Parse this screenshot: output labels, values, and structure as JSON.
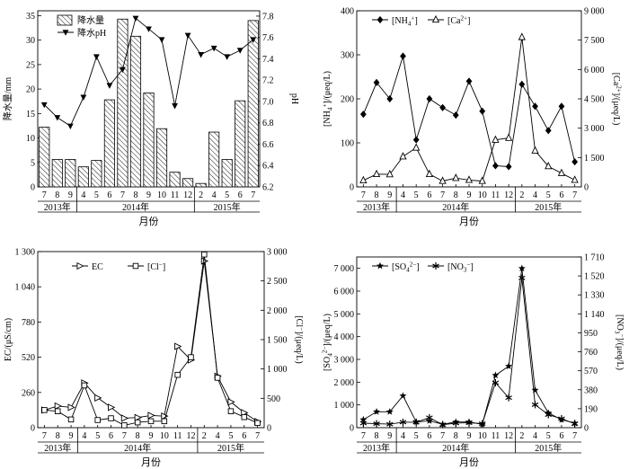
{
  "chart_data": [
    {
      "type": "bar+line",
      "xlabel": "月份",
      "categories": [
        "7",
        "8",
        "9",
        "4",
        "5",
        "6",
        "7",
        "8",
        "9",
        "10",
        "11",
        "12",
        "2",
        "4",
        "5",
        "6",
        "7"
      ],
      "year_groups": [
        {
          "label": "2013年",
          "from": 0,
          "to": 2
        },
        {
          "label": "2014年",
          "from": 3,
          "to": 11
        },
        {
          "label": "2015年",
          "from": 12,
          "to": 16
        }
      ],
      "ylabel_left": "降水量/mm",
      "ylabel_right": "pH",
      "ylim_left": [
        0,
        36
      ],
      "yticks_left": [
        "0",
        "5",
        "10",
        "15",
        "20",
        "25",
        "30",
        "35"
      ],
      "ylim_right": [
        6.2,
        7.85
      ],
      "yticks_right": [
        "6.2",
        "6.4",
        "6.6",
        "6.8",
        "7.0",
        "7.2",
        "7.4",
        "7.6",
        "7.8"
      ],
      "legend_position": "top-left",
      "series": [
        {
          "name": "降水量",
          "kind": "bar",
          "axis": "left",
          "values": [
            12.2,
            5.6,
            5.6,
            4.1,
            5.4,
            17.8,
            34.3,
            30.8,
            19.2,
            11.9,
            3.0,
            1.7,
            0.7,
            11.2,
            5.6,
            17.6,
            34.0
          ]
        },
        {
          "name": "降水pH",
          "kind": "line",
          "marker": "triangle-down",
          "axis": "right",
          "values": [
            6.97,
            6.85,
            6.77,
            7.04,
            7.42,
            7.15,
            7.3,
            7.78,
            7.68,
            7.58,
            6.96,
            7.62,
            7.44,
            7.5,
            7.42,
            7.48,
            7.58
          ]
        }
      ]
    },
    {
      "type": "line",
      "xlabel": "月份",
      "categories": [
        "7",
        "8",
        "9",
        "4",
        "5",
        "6",
        "7",
        "8",
        "9",
        "10",
        "11",
        "12",
        "2",
        "4",
        "5",
        "6",
        "7"
      ],
      "year_groups": [
        {
          "label": "2013年",
          "from": 0,
          "to": 2
        },
        {
          "label": "2014年",
          "from": 3,
          "to": 11
        },
        {
          "label": "2015年",
          "from": 12,
          "to": 16
        }
      ],
      "ylabel_left": "[NH4+]/(μeq/L)",
      "ylabel_right": "[Ca2+]/(μeq/L)",
      "ylim_left": [
        0,
        400
      ],
      "yticks_left": [
        "0",
        "100",
        "200",
        "300",
        "400"
      ],
      "ylim_right": [
        0,
        9000
      ],
      "yticks_right": [
        "0",
        "1 500",
        "3 000",
        "4 500",
        "6 000",
        "7 500",
        "9 000"
      ],
      "legend_position": "top-left",
      "series": [
        {
          "name": "[NH4+]",
          "marker": "diamond-filled",
          "axis": "left",
          "values": [
            165,
            237,
            200,
            297,
            107,
            200,
            180,
            163,
            240,
            172,
            48,
            46,
            233,
            183,
            128,
            183,
            57
          ]
        },
        {
          "name": "[Ca2+]",
          "marker": "triangle-open",
          "axis": "right",
          "values": [
            330,
            650,
            640,
            1550,
            2000,
            650,
            300,
            450,
            350,
            300,
            2400,
            2500,
            7650,
            1850,
            1050,
            700,
            350
          ]
        }
      ]
    },
    {
      "type": "line",
      "xlabel": "月份",
      "categories": [
        "7",
        "8",
        "9",
        "4",
        "5",
        "6",
        "7",
        "8",
        "9",
        "10",
        "11",
        "12",
        "2",
        "4",
        "5",
        "6",
        "7"
      ],
      "year_groups": [
        {
          "label": "2013年",
          "from": 0,
          "to": 2
        },
        {
          "label": "2014年",
          "from": 3,
          "to": 11
        },
        {
          "label": "2015年",
          "from": 12,
          "to": 16
        }
      ],
      "ylabel_left": "EC/(μS/cm)",
      "ylabel_right": "[Cl−]/(μeq/L)",
      "ylim_left": [
        0,
        1300
      ],
      "yticks_left": [
        "0",
        "260",
        "520",
        "780",
        "1 040",
        "1 300"
      ],
      "ylim_right": [
        0,
        3000
      ],
      "yticks_right": [
        "0",
        "500",
        "1 000",
        "1 500",
        "2 000",
        "2 500",
        "3 000"
      ],
      "legend_position": "top-left",
      "series": [
        {
          "name": "EC",
          "marker": "triangle-right-open",
          "axis": "left",
          "values": [
            130,
            160,
            150,
            330,
            220,
            150,
            70,
            75,
            90,
            85,
            600,
            500,
            1230,
            380,
            190,
            110,
            45
          ]
        },
        {
          "name": "[Cl−]",
          "marker": "square-open",
          "axis": "right",
          "values": [
            300,
            280,
            140,
            720,
            130,
            160,
            40,
            90,
            110,
            110,
            900,
            1200,
            2950,
            850,
            280,
            180,
            80
          ]
        }
      ]
    },
    {
      "type": "line",
      "xlabel": "月份",
      "categories": [
        "7",
        "8",
        "9",
        "4",
        "5",
        "6",
        "7",
        "8",
        "9",
        "10",
        "11",
        "12",
        "2",
        "4",
        "5",
        "6",
        "7"
      ],
      "year_groups": [
        {
          "label": "2013年",
          "from": 0,
          "to": 2
        },
        {
          "label": "2014年",
          "from": 3,
          "to": 11
        },
        {
          "label": "2015年",
          "from": 12,
          "to": 16
        }
      ],
      "ylabel_left": "[SO42−]/(μeq/L)",
      "ylabel_right": "[NO3−]/(μeq/L)",
      "ylim_left": [
        0,
        7500
      ],
      "yticks_left": [
        "0",
        "1 000",
        "2 000",
        "3 000",
        "4 000",
        "5 000",
        "6 000",
        "7 000"
      ],
      "ylim_right": [
        0,
        1710
      ],
      "yticks_right": [
        "0",
        "190",
        "380",
        "570",
        "760",
        "950",
        "1 140",
        "1 330",
        "1 520",
        "1 710"
      ],
      "legend_position": "top-left",
      "series": [
        {
          "name": "[SO42−]",
          "marker": "star-filled",
          "axis": "left",
          "values": [
            350,
            700,
            700,
            1400,
            250,
            300,
            150,
            250,
            250,
            150,
            2300,
            2700,
            7000,
            1650,
            650,
            350,
            200
          ]
        },
        {
          "name": "[NO3−]",
          "marker": "asterisk",
          "axis": "right",
          "values": [
            45,
            40,
            35,
            55,
            55,
            100,
            30,
            45,
            50,
            40,
            450,
            300,
            1500,
            230,
            130,
            90,
            40
          ]
        }
      ]
    }
  ]
}
